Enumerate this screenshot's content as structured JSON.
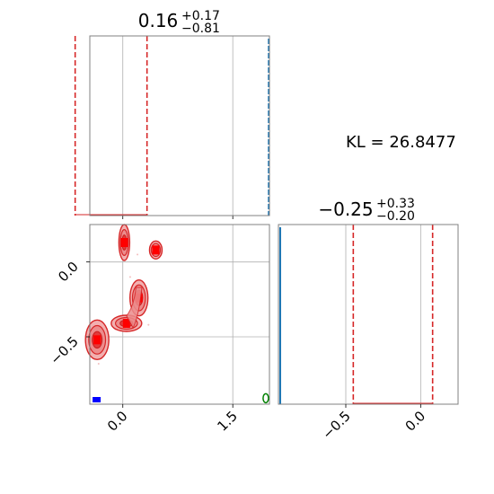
{
  "annotation": {
    "kl_text": "KL = 26.8477"
  },
  "chart_data": [
    {
      "type": "histogram",
      "panel": "marginal-x",
      "title": {
        "base": "0.16",
        "plus": "+0.17",
        "minus": "−0.81"
      },
      "xlim": [
        -0.45,
        2.0
      ],
      "quantile_lines": [
        -0.65,
        0.33
      ],
      "quantile_color": "#d62728",
      "hist_color": "#1f77b4",
      "grid": true,
      "xticks": [
        0.0,
        1.5
      ]
    },
    {
      "type": "contour",
      "panel": "joint",
      "xlim": [
        -0.45,
        2.0
      ],
      "ylim": [
        -0.95,
        0.25
      ],
      "xticks": [
        {
          "v": 0.0,
          "label": "0.0"
        },
        {
          "v": 1.5,
          "label": "1.5"
        }
      ],
      "yticks": [
        {
          "v": 0.0,
          "label": "0.0"
        },
        {
          "v": -0.5,
          "label": "−0.5"
        }
      ],
      "grid": true,
      "red_blobs": [
        {
          "x": -0.35,
          "y": -0.52
        },
        {
          "x": 0.02,
          "y": 0.13
        },
        {
          "x": 0.45,
          "y": 0.08
        },
        {
          "x": 0.22,
          "y": -0.24
        },
        {
          "x": 0.05,
          "y": -0.41
        }
      ],
      "blue_marker": {
        "x": -0.4,
        "y": -0.92
      },
      "green_marker": {
        "x": 1.95,
        "y": -0.91
      }
    },
    {
      "type": "histogram",
      "panel": "marginal-y",
      "title": {
        "base": "−0.25",
        "plus": "+0.33",
        "minus": "−0.20"
      },
      "xlim": [
        -0.95,
        0.25
      ],
      "quantile_lines": [
        -0.45,
        0.08
      ],
      "quantile_color": "#d62728",
      "hist_color": "#1f77b4",
      "grid": true,
      "xticks": [
        {
          "v": -0.5,
          "label": "−0.5"
        },
        {
          "v": 0.0,
          "label": "0.0"
        }
      ]
    }
  ]
}
